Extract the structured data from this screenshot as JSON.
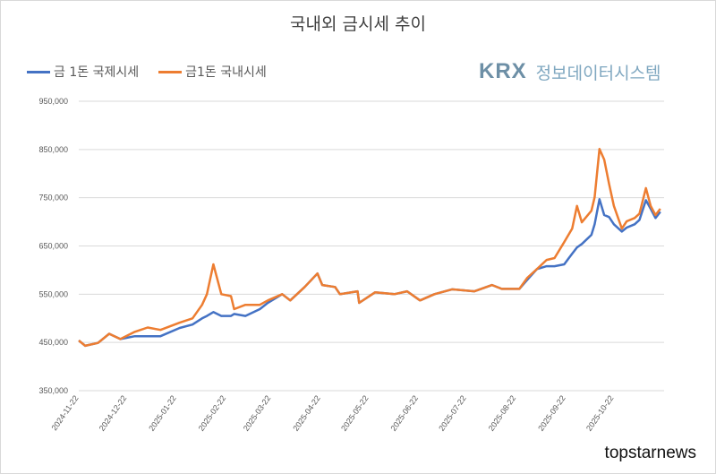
{
  "chart_data": {
    "type": "line",
    "title": "국내외 금시세 추이",
    "xlabel": "",
    "ylabel": "",
    "ylim": [
      350000,
      950000
    ],
    "y_ticks": [
      "950,000",
      "850,000",
      "750,000",
      "650,000",
      "550,000",
      "450,000",
      "350,000"
    ],
    "y_tick_values": [
      950000,
      850000,
      750000,
      650000,
      550000,
      450000,
      350000
    ],
    "x_ticks": [
      "2024-11-22",
      "2024-12-22",
      "2025-01-22",
      "2025-02-22",
      "2025-03-22",
      "2025-04-22",
      "2025-05-22",
      "2025-06-22",
      "2025-07-22",
      "2025-08-22",
      "2025-09-22",
      "2025-10-22"
    ],
    "grid": true,
    "legend_placement": "top-left",
    "x": [
      "2024-11-22",
      "2024-11-26",
      "2024-12-04",
      "2024-12-11",
      "2024-12-18",
      "2024-12-27",
      "2025-01-04",
      "2025-01-12",
      "2025-01-24",
      "2025-02-01",
      "2025-02-07",
      "2025-02-10",
      "2025-02-14",
      "2025-02-19",
      "2025-02-25",
      "2025-02-27",
      "2025-03-06",
      "2025-03-15",
      "2025-03-20",
      "2025-03-29",
      "2025-04-03",
      "2025-04-12",
      "2025-04-20",
      "2025-04-23",
      "2025-05-01",
      "2025-05-04",
      "2025-05-15",
      "2025-05-16",
      "2025-05-26",
      "2025-06-07",
      "2025-06-15",
      "2025-06-23",
      "2025-07-02",
      "2025-07-13",
      "2025-07-27",
      "2025-08-07",
      "2025-08-13",
      "2025-08-24",
      "2025-08-29",
      "2025-09-04",
      "2025-09-10",
      "2025-09-15",
      "2025-09-21",
      "2025-09-26",
      "2025-09-29",
      "2025-10-02",
      "2025-10-08",
      "2025-10-10",
      "2025-10-13",
      "2025-10-16",
      "2025-10-19",
      "2025-10-22",
      "2025-10-27",
      "2025-10-30",
      "2025-11-04",
      "2025-11-07",
      "2025-11-11",
      "2025-11-14",
      "2025-11-17",
      "2025-11-20"
    ],
    "series": [
      {
        "name": "금 1돈 국제시세",
        "color": "#4472c4",
        "values": [
          454000,
          443000,
          449000,
          468000,
          457000,
          463000,
          463000,
          463000,
          480000,
          487000,
          500000,
          505000,
          513000,
          505000,
          505000,
          509000,
          505000,
          519000,
          532000,
          550000,
          537000,
          565000,
          593000,
          569000,
          565000,
          550000,
          556000,
          532000,
          554000,
          550000,
          556000,
          537000,
          550000,
          560000,
          556000,
          569000,
          561000,
          561000,
          580000,
          602000,
          608000,
          608000,
          612000,
          634000,
          647000,
          654000,
          673000,
          695000,
          747000,
          714000,
          710000,
          695000,
          680000,
          688000,
          695000,
          704000,
          745000,
          727000,
          708000,
          721000
        ]
      },
      {
        "name": "금1돈 국내시세",
        "color": "#ed7d31",
        "values": [
          454000,
          443000,
          449000,
          468000,
          457000,
          472000,
          481000,
          476000,
          491000,
          500000,
          528000,
          550000,
          612000,
          550000,
          546000,
          519000,
          528000,
          528000,
          537000,
          550000,
          537000,
          565000,
          593000,
          569000,
          565000,
          550000,
          556000,
          532000,
          554000,
          550000,
          556000,
          537000,
          550000,
          560000,
          556000,
          569000,
          561000,
          561000,
          584000,
          602000,
          621000,
          625000,
          658000,
          686000,
          733000,
          699000,
          723000,
          751000,
          851000,
          829000,
          779000,
          733000,
          686000,
          701000,
          708000,
          717000,
          770000,
          733000,
          714000,
          727000
        ]
      }
    ]
  },
  "logo": {
    "brand": "KRX",
    "text": "정보데이터시스템"
  },
  "watermark": "topstarnews"
}
